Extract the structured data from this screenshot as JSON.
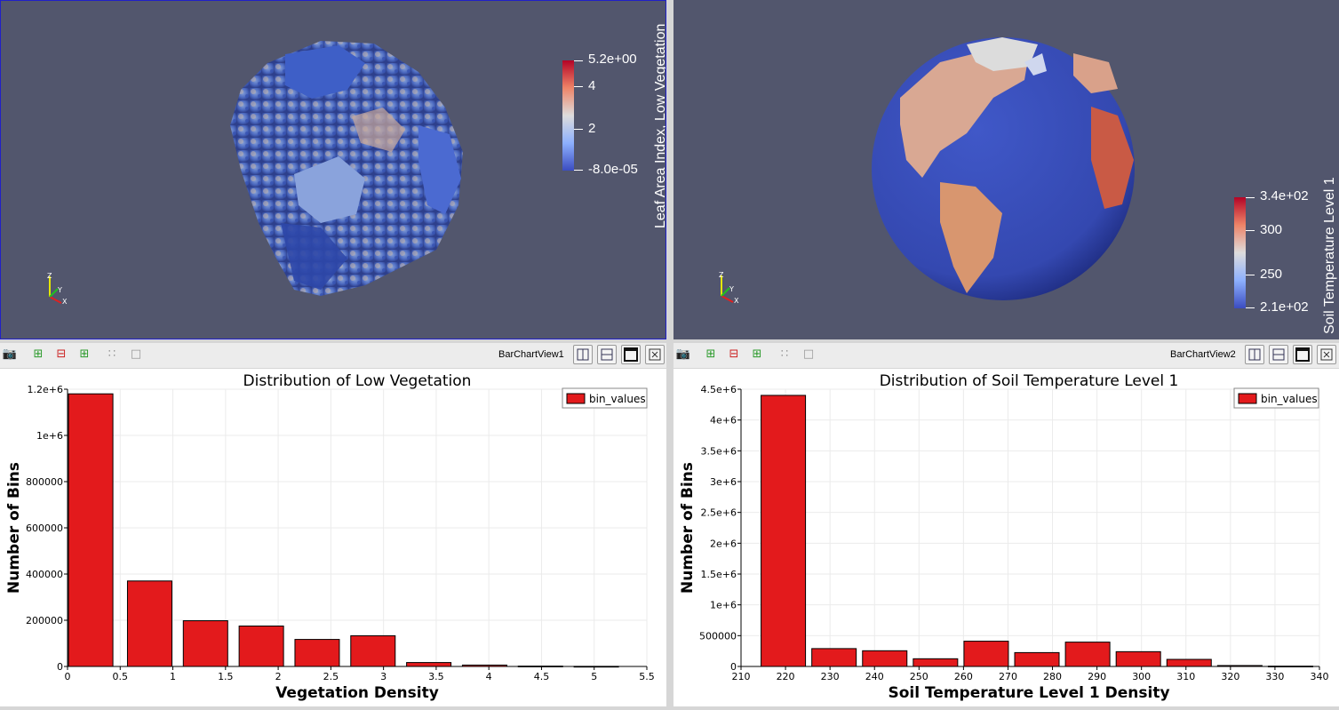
{
  "views": {
    "left": {
      "colorbar": {
        "title": "Leaf Area Index, Low Vegetation",
        "ticks": [
          "5.2e+00",
          "4",
          "2",
          "-8.0e-05"
        ]
      },
      "axes_labels": {
        "z": "Z",
        "y": "Y",
        "x": "X"
      }
    },
    "right": {
      "colorbar": {
        "title": "Soil Temperature Level 1",
        "ticks": [
          "3.4e+02",
          "300",
          "250",
          "2.1e+02"
        ]
      },
      "axes_labels": {
        "z": "Z",
        "y": "Y",
        "x": "X"
      }
    }
  },
  "toolbars": {
    "left": {
      "view_name": "BarChartView1"
    },
    "right": {
      "view_name": "BarChartView2"
    }
  },
  "icons": [
    "camera-icon",
    "zoom-in-icon",
    "zoom-out-icon",
    "reset-zoom-icon",
    "select-points-icon",
    "select-rect-icon",
    "split-horizontal-icon",
    "split-vertical-icon",
    "maximize-icon",
    "close-icon"
  ],
  "colors": {
    "bar_fill": "#e31a1c",
    "view_bg": "#52566d"
  },
  "chart_data": [
    {
      "type": "bar",
      "title": "Distribution of Low Vegetation",
      "xlabel": "Vegetation Density",
      "ylabel": "Number of Bins",
      "legend": "bin_values",
      "legend_position": "top-right",
      "xlim": [
        0,
        5.5
      ],
      "ylim": [
        0,
        1200000
      ],
      "x_ticks": [
        "0",
        "0.5",
        "1",
        "1.5",
        "2",
        "2.5",
        "3",
        "3.5",
        "4",
        "4.5",
        "5",
        "5.5"
      ],
      "x_tick_values": [
        0,
        0.5,
        1,
        1.5,
        2,
        2.5,
        3,
        3.5,
        4,
        4.5,
        5,
        5.5
      ],
      "y_ticks": [
        "0",
        "200000",
        "400000",
        "600000",
        "800000",
        "1e+6",
        "1.2e+6"
      ],
      "y_tick_values": [
        0,
        200000,
        400000,
        600000,
        800000,
        1000000,
        1200000
      ],
      "bin_centers": [
        0.22,
        0.78,
        1.31,
        1.84,
        2.37,
        2.9,
        3.43,
        3.96,
        4.49,
        5.02
      ],
      "values": [
        1180000,
        370000,
        198000,
        175000,
        117000,
        133000,
        17000,
        6000,
        1500,
        500
      ]
    },
    {
      "type": "bar",
      "title": "Distribution of Soil Temperature Level 1",
      "xlabel": "Soil Temperature Level 1 Density",
      "ylabel": "Number of Bins",
      "legend": "bin_values",
      "legend_position": "top-right",
      "xlim": [
        210,
        340
      ],
      "ylim": [
        0,
        4500000
      ],
      "x_ticks": [
        "210",
        "220",
        "230",
        "240",
        "250",
        "260",
        "270",
        "280",
        "290",
        "300",
        "310",
        "320",
        "330",
        "340"
      ],
      "x_tick_values": [
        210,
        220,
        230,
        240,
        250,
        260,
        270,
        280,
        290,
        300,
        310,
        320,
        330,
        340
      ],
      "y_ticks": [
        "0",
        "500000",
        "1e+6",
        "1.5e+6",
        "2e+6",
        "2.5e+6",
        "3e+6",
        "3.5e+6",
        "4e+6",
        "4.5e+6"
      ],
      "y_tick_values": [
        0,
        500000,
        1000000,
        1500000,
        2000000,
        2500000,
        3000000,
        3500000,
        4000000,
        4500000
      ],
      "bin_centers": [
        219.5,
        230.9,
        242.3,
        253.7,
        265.1,
        276.5,
        287.9,
        299.3,
        310.7,
        322.1,
        333.5
      ],
      "values": [
        4400000,
        290000,
        255000,
        125000,
        410000,
        225000,
        395000,
        240000,
        115000,
        15000,
        5000
      ]
    }
  ]
}
